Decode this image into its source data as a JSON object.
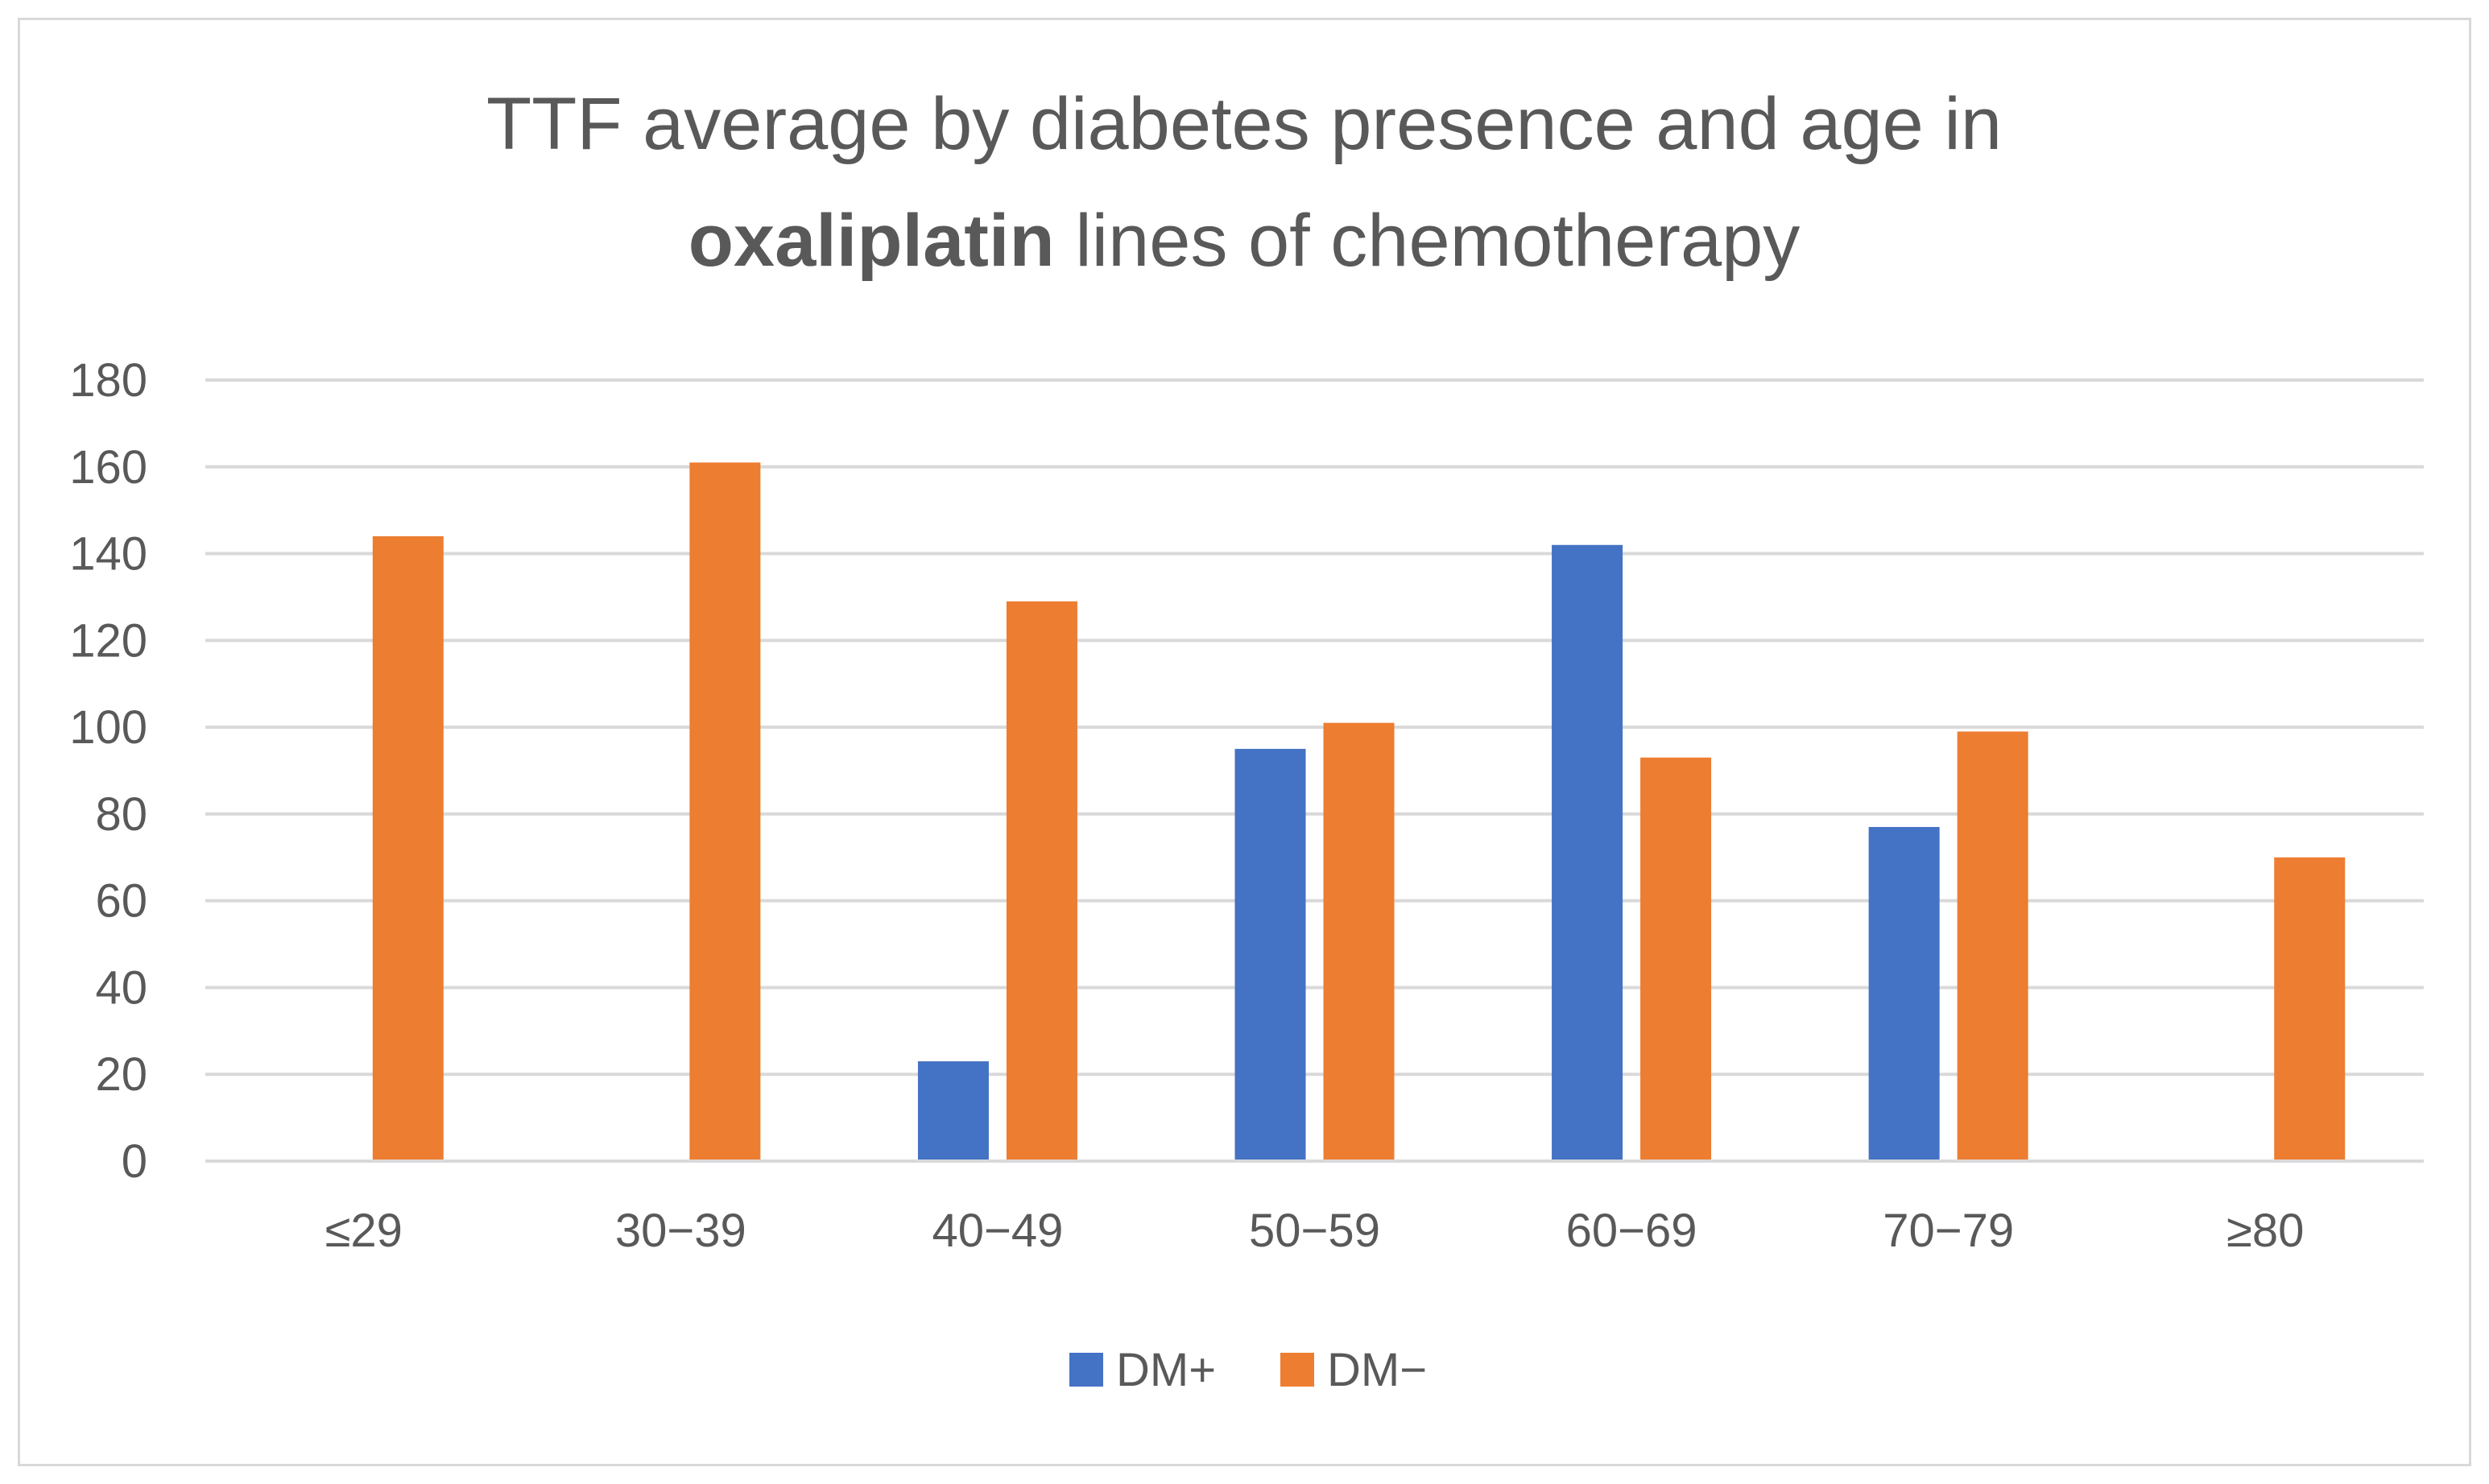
{
  "chart_data": {
    "type": "bar",
    "title": {
      "line1": "TTF average by diabetes presence  and age in",
      "line2_bold": "oxaliplatin",
      "line2_rest": " lines of chemotherapy"
    },
    "categories": [
      "≤29",
      "30−39",
      "40−49",
      "50−59",
      "60−69",
      "70−79",
      "≥80"
    ],
    "series": [
      {
        "name": "DM+",
        "color": "#4472c4",
        "values": [
          null,
          null,
          23,
          95,
          142,
          77,
          null
        ]
      },
      {
        "name": "DM−",
        "color": "#ed7d31",
        "values": [
          144,
          161,
          129,
          101,
          93,
          99,
          70
        ]
      }
    ],
    "y_ticks": [
      0,
      20,
      40,
      60,
      80,
      100,
      120,
      140,
      160,
      180
    ],
    "ylim": [
      0,
      180
    ],
    "xlabel": "",
    "ylabel": "",
    "grid": true,
    "legend_position": "bottom"
  }
}
